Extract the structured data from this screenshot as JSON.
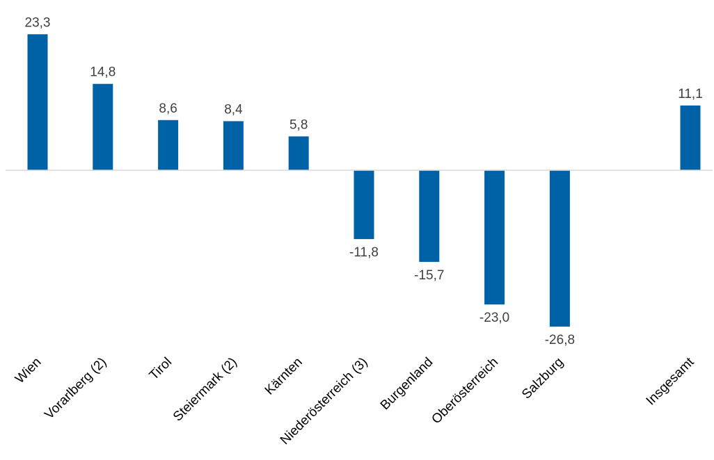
{
  "chart_data": {
    "type": "bar",
    "categories": [
      "Wien",
      "Vorarlberg (2)",
      "Tirol",
      "Steiermark (2)",
      "Kärnten",
      "Niederösterreich (3)",
      "Burgenland",
      "Oberösterreich",
      "Salzburg",
      "",
      "Insgesamt"
    ],
    "values": [
      23.3,
      14.8,
      8.6,
      8.4,
      5.8,
      -11.8,
      -15.7,
      -23.0,
      -26.8,
      null,
      11.1
    ],
    "data_labels": [
      "23,3",
      "14,8",
      "8,6",
      "8,4",
      "5,8",
      "-11,8",
      "-15,7",
      "-23,0",
      "-26,8",
      "",
      "11,1"
    ],
    "title": "",
    "xlabel": "",
    "ylabel": "",
    "grid": false,
    "legend": "none",
    "bar_color": "#0062A6",
    "axis_color": "#D9D9D9"
  }
}
